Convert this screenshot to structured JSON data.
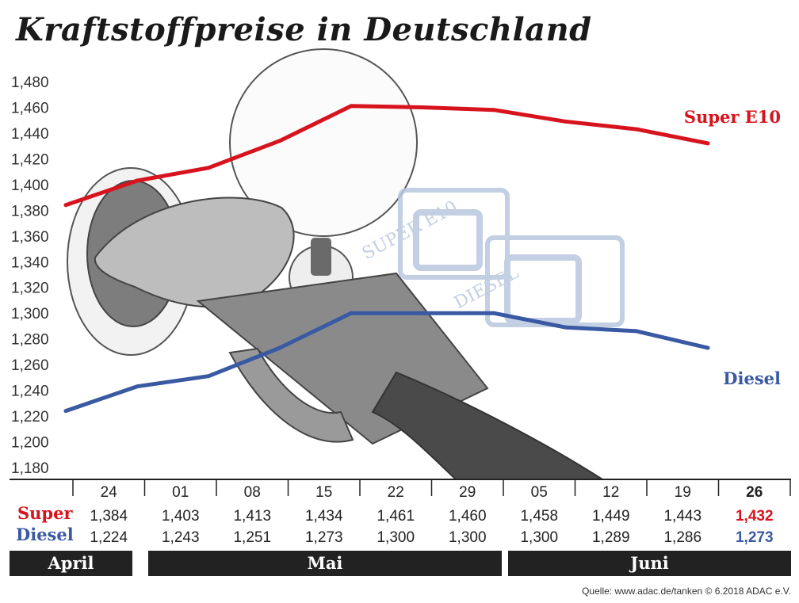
{
  "title": "Kraftstoffpreise in Deutschland",
  "source": "Quelle: www.adac.de/tanken   © 6.2018  ADAC e.V.",
  "colors": {
    "super": "#d7141d",
    "diesel": "#3a59a3",
    "month_bar": "#222222",
    "deco": "#b9c7de"
  },
  "decoration": {
    "super_text": "SUPER E10",
    "diesel_text": "DIESEL"
  },
  "table_labels": {
    "super": "Super",
    "diesel": "Diesel"
  },
  "months": [
    "April",
    "Mai",
    "Juni"
  ],
  "chart_data": {
    "type": "line",
    "title": "Kraftstoffpreise in Deutschland",
    "categories": [
      "24",
      "01",
      "08",
      "15",
      "22",
      "29",
      "05",
      "12",
      "19",
      "26"
    ],
    "ylim": [
      1.18,
      1.48
    ],
    "yticks": [
      "1,180",
      "1,200",
      "1,220",
      "1,240",
      "1,260",
      "1,280",
      "1,300",
      "1,320",
      "1,340",
      "1,360",
      "1,380",
      "1,400",
      "1,420",
      "1,440",
      "1,460",
      "1,480"
    ],
    "grid": false,
    "legend": "inline labels at right end of lines",
    "series": [
      {
        "name": "Super E10",
        "values": [
          1.384,
          1.403,
          1.413,
          1.434,
          1.461,
          1.46,
          1.458,
          1.449,
          1.443,
          1.432
        ],
        "labels": [
          "1,384",
          "1,403",
          "1,413",
          "1,434",
          "1,461",
          "1,460",
          "1,458",
          "1,449",
          "1,443",
          "1,432"
        ]
      },
      {
        "name": "Diesel",
        "values": [
          1.224,
          1.243,
          1.251,
          1.273,
          1.3,
          1.3,
          1.3,
          1.289,
          1.286,
          1.273
        ],
        "labels": [
          "1,224",
          "1,243",
          "1,251",
          "1,273",
          "1,300",
          "1,300",
          "1,300",
          "1,289",
          "1,286",
          "1,273"
        ]
      }
    ]
  }
}
